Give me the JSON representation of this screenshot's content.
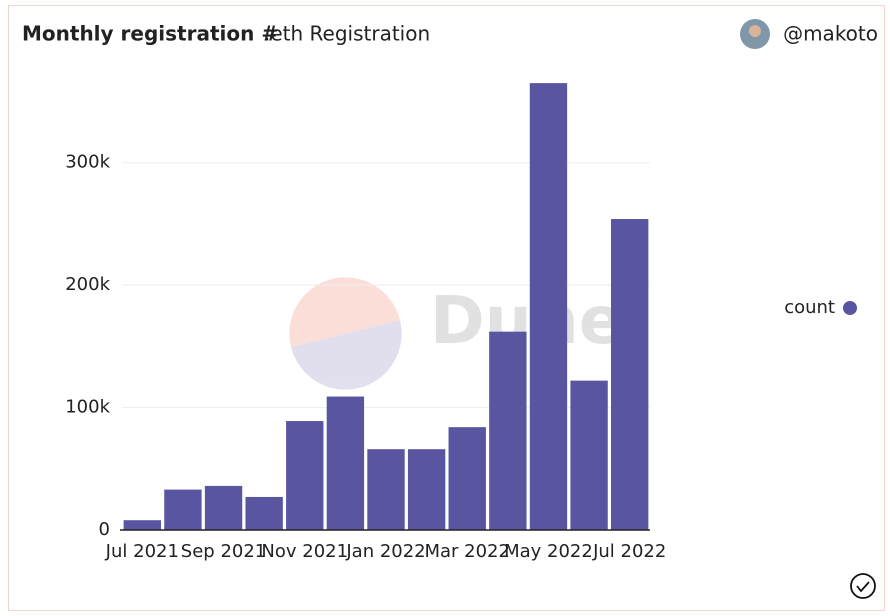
{
  "author": "@makoto",
  "chart_data": {
    "type": "bar",
    "title": "Monthly registration #",
    "subtitle": ".eth Registration",
    "watermark": "Dune",
    "categories": [
      "Jul 2021",
      null,
      "Sep 2021",
      null,
      "Nov 2021",
      null,
      "Jan 2022",
      null,
      "Mar 2022",
      null,
      "May 2022",
      null,
      "Jul 2022"
    ],
    "series": [
      {
        "name": "count",
        "color": "#5955a0",
        "values": [
          8000,
          33000,
          36000,
          27000,
          89000,
          109000,
          66000,
          66000,
          84000,
          162000,
          365000,
          122000,
          254000
        ]
      }
    ],
    "ylim": [
      0,
      370000
    ],
    "yticks": [
      0,
      {
        "value": 100000,
        "label": "100k"
      },
      {
        "value": 200000,
        "label": "200k"
      },
      {
        "value": 300000,
        "label": "300k"
      }
    ],
    "grid": true,
    "legend": "right"
  }
}
